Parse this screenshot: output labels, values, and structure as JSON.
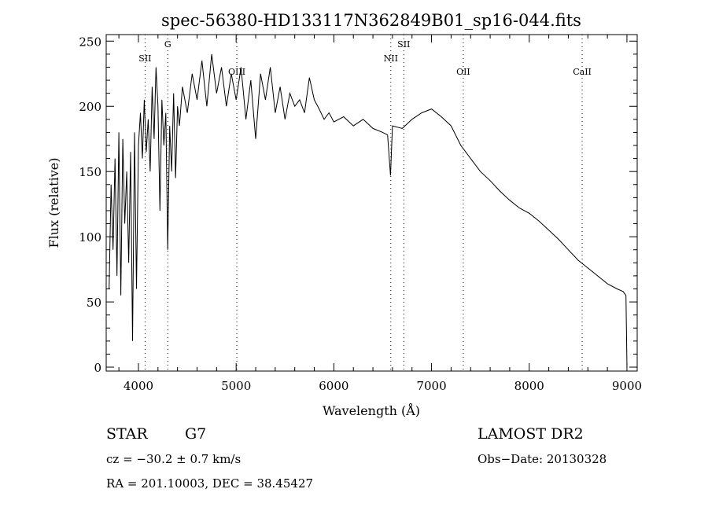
{
  "chart_data": {
    "type": "line",
    "title": "spec-56380-HD133117N362849B01_sp16-044.fits",
    "xlabel": "Wavelength (Å)",
    "ylabel": "Flux (relative)",
    "xlim": [
      3670,
      9105
    ],
    "ylim": [
      -3,
      255
    ],
    "xticks": [
      4000,
      5000,
      6000,
      7000,
      8000,
      9000
    ],
    "yticks": [
      0,
      50,
      100,
      150,
      200,
      250
    ],
    "grid": false,
    "lines": [
      {
        "name": "SII",
        "x": 4068
      },
      {
        "name": "G",
        "x": 4300
      },
      {
        "name": "OIII",
        "x": 5007
      },
      {
        "name": "NII",
        "x": 6583
      },
      {
        "name": "SII",
        "x": 6716
      },
      {
        "name": "OII",
        "x": 7325
      },
      {
        "name": "CaII",
        "x": 8542
      }
    ],
    "series": [
      {
        "name": "spectrum",
        "x": [
          3700,
          3720,
          3740,
          3760,
          3780,
          3800,
          3820,
          3840,
          3860,
          3880,
          3900,
          3920,
          3940,
          3960,
          3980,
          4000,
          4020,
          4040,
          4060,
          4080,
          4100,
          4120,
          4140,
          4160,
          4180,
          4200,
          4220,
          4240,
          4260,
          4280,
          4300,
          4320,
          4340,
          4360,
          4380,
          4400,
          4420,
          4450,
          4500,
          4550,
          4600,
          4650,
          4700,
          4750,
          4800,
          4850,
          4900,
          4950,
          5000,
          5050,
          5100,
          5150,
          5200,
          5250,
          5300,
          5350,
          5400,
          5450,
          5500,
          5550,
          5600,
          5650,
          5700,
          5750,
          5800,
          5850,
          5900,
          5950,
          6000,
          6100,
          6200,
          6300,
          6400,
          6500,
          6550,
          6580,
          6600,
          6700,
          6800,
          6900,
          7000,
          7100,
          7200,
          7300,
          7400,
          7500,
          7600,
          7700,
          7800,
          7900,
          8000,
          8100,
          8200,
          8300,
          8400,
          8500,
          8600,
          8700,
          8800,
          8900,
          8960,
          8990,
          9000
        ],
        "y": [
          60,
          140,
          90,
          160,
          70,
          180,
          55,
          175,
          110,
          150,
          80,
          165,
          20,
          180,
          60,
          170,
          195,
          160,
          205,
          165,
          190,
          150,
          215,
          175,
          230,
          200,
          120,
          205,
          170,
          195,
          90,
          185,
          150,
          210,
          145,
          200,
          185,
          215,
          195,
          225,
          205,
          235,
          200,
          240,
          210,
          230,
          200,
          225,
          205,
          230,
          190,
          220,
          175,
          225,
          205,
          230,
          195,
          215,
          190,
          210,
          200,
          205,
          195,
          222,
          205,
          198,
          190,
          195,
          188,
          192,
          185,
          190,
          183,
          180,
          178,
          147,
          185,
          183,
          190,
          195,
          198,
          192,
          185,
          170,
          160,
          150,
          143,
          135,
          128,
          122,
          118,
          112,
          105,
          98,
          90,
          82,
          76,
          70,
          64,
          60,
          58,
          55,
          0
        ]
      }
    ]
  },
  "info": {
    "object_class": "STAR",
    "subclass": "G7",
    "survey": "LAMOST DR2",
    "cz": "cz = −30.2 ± 0.7 km/s",
    "obs_date": "Obs−Date: 20130328",
    "coords": "RA = 201.10003, DEC =  38.45427"
  }
}
